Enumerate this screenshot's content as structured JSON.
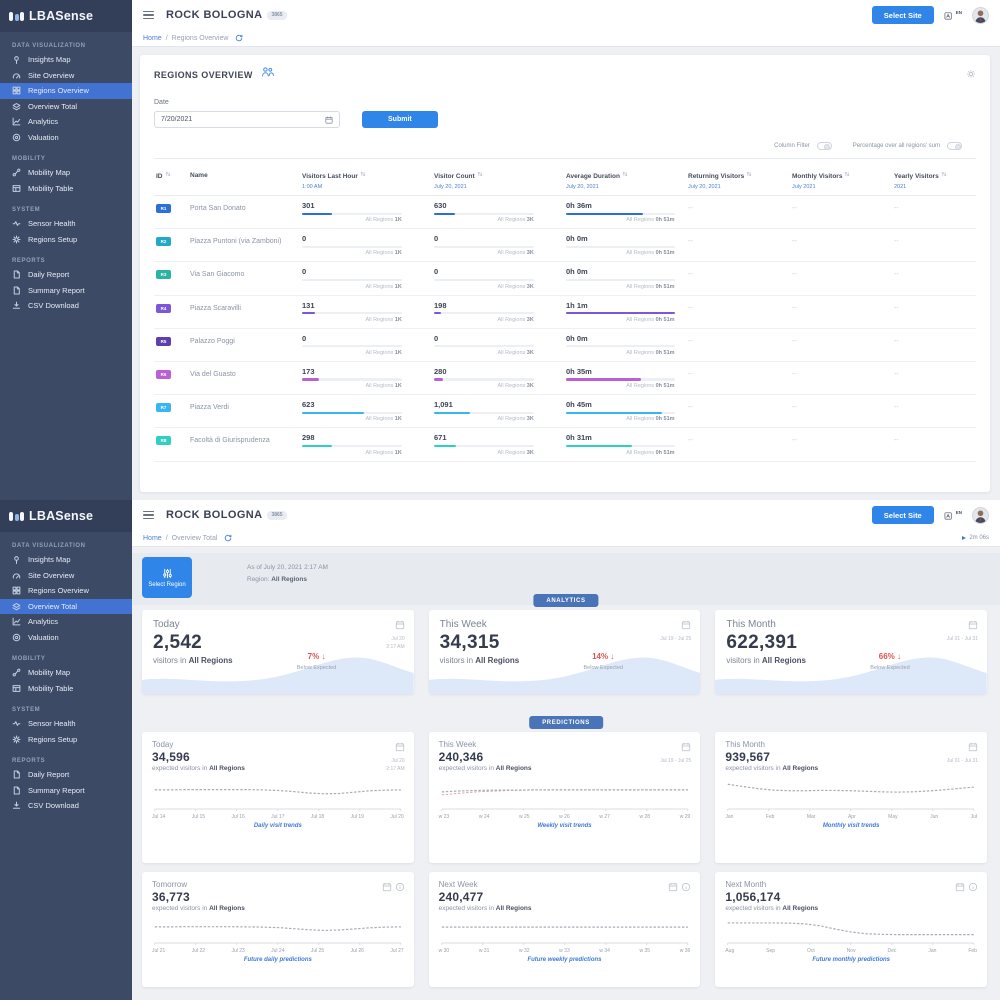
{
  "brand": {
    "logo_text": "LBASense",
    "site_name": "ROCK BOLOGNA",
    "site_badge": "3865"
  },
  "topbar": {
    "select_site_label": "Select Site",
    "language": "EN"
  },
  "ui": {
    "breadcrumb_separator": "/",
    "all_regions_label": "All Regions"
  },
  "sidebar": {
    "sections": [
      {
        "label": "DATA VISUALIZATION",
        "items": [
          {
            "label": "Insights Map",
            "icon": "map"
          },
          {
            "label": "Site Overview",
            "icon": "gauge"
          },
          {
            "label": "Regions Overview",
            "icon": "grid"
          },
          {
            "label": "Overview Total",
            "icon": "layers"
          },
          {
            "label": "Analytics",
            "icon": "chart"
          },
          {
            "label": "Valuation",
            "icon": "target"
          }
        ]
      },
      {
        "label": "MOBILITY",
        "items": [
          {
            "label": "Mobility Map",
            "icon": "route"
          },
          {
            "label": "Mobility Table",
            "icon": "table"
          }
        ]
      },
      {
        "label": "SYSTEM",
        "items": [
          {
            "label": "Sensor Health",
            "icon": "pulse"
          },
          {
            "label": "Regions Setup",
            "icon": "gear"
          }
        ]
      },
      {
        "label": "REPORTS",
        "items": [
          {
            "label": "Daily Report",
            "icon": "file"
          },
          {
            "label": "Summary Report",
            "icon": "file"
          },
          {
            "label": "CSV Download",
            "icon": "download"
          }
        ]
      }
    ]
  },
  "screen1": {
    "active_item": "Regions Overview",
    "breadcrumb": {
      "home": "Home",
      "current": "Regions Overview"
    },
    "panel": {
      "title": "REGIONS OVERVIEW",
      "date_label": "Date",
      "date_value": "7/20/2021",
      "submit_label": "Submit",
      "toggles": [
        {
          "label": "Column Filter",
          "on": false
        },
        {
          "label": "Percentage over all regions' sum",
          "on": false
        }
      ]
    },
    "table": {
      "columns": [
        {
          "label": "ID",
          "sub": "",
          "sortable": true
        },
        {
          "label": "Name",
          "sub": "",
          "sortable": false
        },
        {
          "label": "Visitors Last Hour",
          "sub": "1:00 AM",
          "sortable": true
        },
        {
          "label": "Visitor Count",
          "sub": "July 20, 2021",
          "sortable": true
        },
        {
          "label": "Average Duration",
          "sub": "July 20, 2021",
          "sortable": true
        },
        {
          "label": "Returning Visitors",
          "sub": "July 20, 2021",
          "sortable": true
        },
        {
          "label": "Monthly Visitors",
          "sub": "July 2021",
          "sortable": true
        },
        {
          "label": "Yearly Visitors",
          "sub": "2021",
          "sortable": true
        }
      ],
      "totals": {
        "visitors_last_hour": "1K",
        "visitor_count": "3K",
        "average_duration": "0h 51m"
      },
      "rows": [
        {
          "id": "R1",
          "color": "#2d6fd9",
          "name": "Porta San Donato",
          "vlh": "301",
          "vlh_pct": 30,
          "vc": "630",
          "vc_pct": 21,
          "dur": "0h 36m",
          "dur_pct": 71,
          "returning": "--",
          "monthly": "--",
          "yearly": "--"
        },
        {
          "id": "R2",
          "color": "#21a9c7",
          "name": "Piazza Puntoni (via Zamboni)",
          "vlh": "0",
          "vlh_pct": 0,
          "vc": "0",
          "vc_pct": 0,
          "dur": "0h 0m",
          "dur_pct": 0,
          "returning": "--",
          "monthly": "--",
          "yearly": "--"
        },
        {
          "id": "R3",
          "color": "#2bb3a3",
          "name": "Via San Giacomo",
          "vlh": "0",
          "vlh_pct": 0,
          "vc": "0",
          "vc_pct": 0,
          "dur": "0h 0m",
          "dur_pct": 0,
          "returning": "--",
          "monthly": "--",
          "yearly": "--"
        },
        {
          "id": "R4",
          "color": "#7e57d8",
          "name": "Piazza Scaravilli",
          "vlh": "131",
          "vlh_pct": 13,
          "vc": "198",
          "vc_pct": 7,
          "dur": "1h 1m",
          "dur_pct": 100,
          "returning": "--",
          "monthly": "--",
          "yearly": "--"
        },
        {
          "id": "R5",
          "color": "#5e3fb0",
          "name": "Palazzo Poggi",
          "vlh": "0",
          "vlh_pct": 0,
          "vc": "0",
          "vc_pct": 0,
          "dur": "0h 0m",
          "dur_pct": 0,
          "returning": "--",
          "monthly": "--",
          "yearly": "--"
        },
        {
          "id": "R6",
          "color": "#bb5fd6",
          "name": "Via del Guasto",
          "vlh": "173",
          "vlh_pct": 17,
          "vc": "280",
          "vc_pct": 9,
          "dur": "0h 35m",
          "dur_pct": 69,
          "returning": "--",
          "monthly": "--",
          "yearly": "--"
        },
        {
          "id": "R7",
          "color": "#38b6f0",
          "name": "Piazza Verdi",
          "vlh": "623",
          "vlh_pct": 62,
          "vc": "1,091",
          "vc_pct": 36,
          "dur": "0h 45m",
          "dur_pct": 88,
          "returning": "--",
          "monthly": "--",
          "yearly": "--"
        },
        {
          "id": "R8",
          "color": "#2fd0c3",
          "name": "Facoltà di Giurisprudenza",
          "vlh": "298",
          "vlh_pct": 30,
          "vc": "671",
          "vc_pct": 22,
          "dur": "0h 31m",
          "dur_pct": 61,
          "returning": "--",
          "monthly": "--",
          "yearly": "--"
        }
      ]
    }
  },
  "screen2": {
    "active_item": "Overview Total",
    "breadcrumb": {
      "home": "Home",
      "current": "Overview Total"
    },
    "refresh_timer": "2m 06s",
    "select_region_label": "Select Region",
    "as_of": "As of July 20, 2021 2:17 AM",
    "region_label": "Region:",
    "region_value": "All Regions",
    "analytics": {
      "badge": "ANALYTICS",
      "unit_prefix": "visitors in",
      "cards": [
        {
          "title": "Today",
          "value": "2,542",
          "region": "All Regions",
          "delta": "7%",
          "delta_note": "Below Expected",
          "dates": [
            "Jul 20",
            "2:17 AM"
          ]
        },
        {
          "title": "This Week",
          "value": "34,315",
          "region": "All Regions",
          "delta": "14%",
          "delta_note": "Below Expected",
          "dates": [
            "Jul 19 - Jul 25"
          ]
        },
        {
          "title": "This Month",
          "value": "622,391",
          "region": "All Regions",
          "delta": "66%",
          "delta_note": "Below Expected",
          "dates": [
            "Jul 01 - Jul 31"
          ]
        }
      ]
    },
    "predictions": {
      "badge": "PREDICTIONS",
      "unit_prefix": "expected visitors in",
      "cards": [
        {
          "title": "Today",
          "value": "34,596",
          "region": "All Regions",
          "caption": "Daily visit trends",
          "dates": [
            "Jul 20",
            "2:17 AM"
          ],
          "icons": [
            "calendar"
          ],
          "x_labels": [
            "Jul 14",
            "Jul 15",
            "Jul 16",
            "Jul 17",
            "Jul 18",
            "Jul 19",
            "Jul 20"
          ],
          "y_percent": [
            46,
            46,
            45,
            45,
            45,
            45,
            45,
            46,
            48,
            52,
            57,
            60,
            59,
            54,
            49,
            47,
            46
          ]
        },
        {
          "title": "This Week",
          "value": "240,346",
          "region": "All Regions",
          "caption": "Weekly visit trends",
          "dates": [
            "Jul 19 - Jul 25"
          ],
          "icons": [
            "calendar"
          ],
          "x_labels": [
            "w 23",
            "w 24",
            "w 25",
            "w 26",
            "w 27",
            "w 28",
            "w 29"
          ],
          "y_percent": [
            53,
            50,
            48,
            47,
            47,
            46,
            46,
            46,
            46,
            46,
            46,
            46,
            46,
            46,
            46
          ],
          "y_percent2": [
            64,
            58,
            53,
            50,
            48,
            47,
            46,
            46,
            46,
            46,
            46,
            46,
            46,
            46,
            46
          ]
        },
        {
          "title": "This Month",
          "value": "939,567",
          "region": "All Regions",
          "caption": "Monthly visit trends",
          "dates": [
            "Jul 01 - Jul 31"
          ],
          "icons": [
            "calendar"
          ],
          "x_labels": [
            "Jan",
            "Feb",
            "Mar",
            "Apr",
            "May",
            "Jun",
            "Jul"
          ],
          "y_percent": [
            26,
            34,
            42,
            47,
            49,
            49,
            48,
            48,
            49,
            51,
            53,
            54,
            53,
            50,
            46,
            41,
            36
          ]
        },
        {
          "title": "Tomorrow",
          "value": "36,773",
          "region": "All Regions",
          "caption": "Future daily predictions",
          "dates": [],
          "icons": [
            "calendar",
            "info"
          ],
          "x_labels": [
            "Jul 21",
            "Jul 22",
            "Jul 23",
            "Jul 24",
            "Jul 25",
            "Jul 26",
            "Jul 27"
          ],
          "y_percent": [
            45,
            45,
            44,
            44,
            44,
            44,
            45,
            46,
            48,
            53,
            58,
            61,
            59,
            54,
            49,
            46,
            45
          ]
        },
        {
          "title": "Next Week",
          "value": "240,477",
          "region": "All Regions",
          "caption": "Future weekly predictions",
          "dates": [],
          "icons": [
            "calendar",
            "info"
          ],
          "x_labels": [
            "w 30",
            "w 31",
            "w 32",
            "w 33",
            "w 34",
            "w 35",
            "w 36"
          ],
          "y_percent": [
            46,
            46,
            46,
            46,
            46,
            46,
            46,
            46,
            46,
            46,
            46,
            46,
            46,
            46,
            46
          ]
        },
        {
          "title": "Next Month",
          "value": "1,056,174",
          "region": "All Regions",
          "caption": "Future monthly predictions",
          "dates": [],
          "icons": [
            "calendar",
            "info"
          ],
          "x_labels": [
            "Aug",
            "Sep",
            "Oct",
            "Nov",
            "Dec",
            "Jan",
            "Feb"
          ],
          "y_percent": [
            27,
            27,
            27,
            27,
            28,
            31,
            40,
            55,
            68,
            76,
            79,
            80,
            80,
            80,
            80,
            80,
            80
          ]
        }
      ]
    }
  }
}
